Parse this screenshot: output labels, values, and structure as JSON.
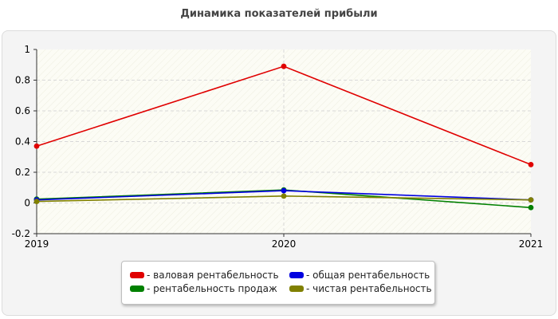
{
  "chart_data": {
    "type": "line",
    "title": "Динамика показателей прибыли",
    "categories": [
      "2019",
      "2020",
      "2021"
    ],
    "ylim": [
      -0.2,
      1
    ],
    "yticks": [
      "1",
      "0.8",
      "0.6",
      "0.4",
      "0.2",
      "0",
      "-0.2"
    ],
    "grid": true,
    "legend_position": "bottom",
    "series": [
      {
        "name": "валовая рентабельность",
        "color": "#e00000",
        "values": [
          0.37,
          0.89,
          0.25
        ]
      },
      {
        "name": "рентабельность продаж",
        "color": "#008000",
        "values": [
          0.025,
          0.085,
          -0.03
        ]
      },
      {
        "name": "общая рентабельность",
        "color": "#0000e0",
        "values": [
          0.02,
          0.08,
          0.02
        ]
      },
      {
        "name": "чистая рентабельность",
        "color": "#808000",
        "values": [
          0.01,
          0.045,
          0.02
        ]
      }
    ]
  },
  "legend": {
    "items": [
      {
        "label": "- валовая рентабельность",
        "color": "#e00000"
      },
      {
        "label": "- общая рентабельность",
        "color": "#0000e0"
      },
      {
        "label": "- рентабельность продаж",
        "color": "#008000"
      },
      {
        "label": "- чистая рентабельность",
        "color": "#808000"
      }
    ]
  }
}
